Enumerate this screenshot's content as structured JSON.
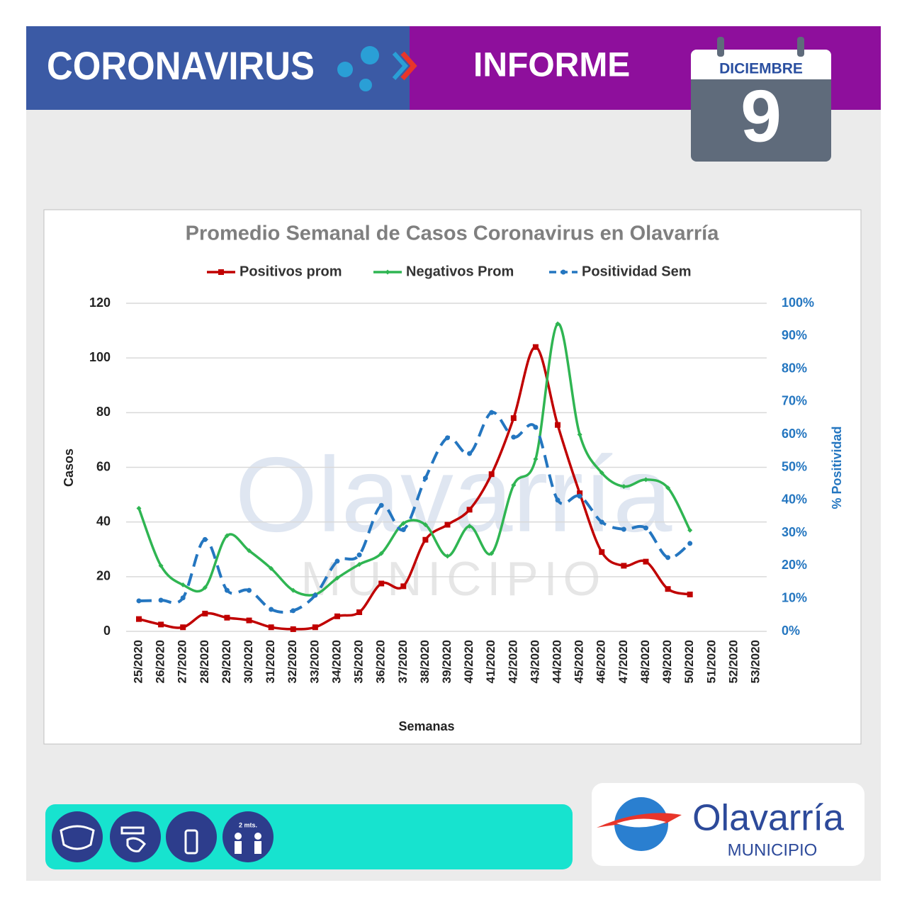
{
  "header": {
    "title": "CORONAVIRUS",
    "subtitle": "INFORME",
    "month": "DICIEMBRE",
    "day": "9"
  },
  "watermark": {
    "text": "Olavarría",
    "sub": "MUNICIPIO"
  },
  "chart_data": {
    "type": "line",
    "title": "Promedio Semanal de Casos Coronavirus en Olavarría",
    "x_label": "Semanas",
    "y_label": "Casos",
    "y2_label": "% Positividad",
    "categories": [
      "25/2020",
      "26/2020",
      "27/2020",
      "28/2020",
      "29/2020",
      "30/2020",
      "31/2020",
      "32/2020",
      "33/2020",
      "34/2020",
      "35/2020",
      "36/2020",
      "37/2020",
      "38/2020",
      "39/2020",
      "40/2020",
      "41/2020",
      "42/2020",
      "43/2020",
      "44/2020",
      "45/2020",
      "46/2020",
      "47/2020",
      "48/2020",
      "49/2020",
      "50/2020",
      "51/2020",
      "52/2020",
      "53/2020"
    ],
    "series": [
      {
        "name": "Positivos prom",
        "color": "#c00000",
        "marker": "square",
        "values": [
          4.5,
          2.5,
          1.5,
          6.5,
          5,
          4,
          1.5,
          0.8,
          1.5,
          5.5,
          7,
          17.5,
          16.5,
          33.5,
          39,
          44.5,
          57.5,
          78,
          104,
          75.5,
          50.5,
          29,
          24,
          25.5,
          15.5,
          13.5,
          null,
          null,
          null
        ]
      },
      {
        "name": "Negativos Prom",
        "color": "#2fb552",
        "marker": "diamond",
        "values": [
          45,
          24,
          17,
          16,
          35,
          29.5,
          23,
          15,
          13.5,
          19.5,
          24.5,
          28.5,
          39.5,
          39,
          27.5,
          38.5,
          28.5,
          53.5,
          63,
          112.5,
          72,
          58,
          53,
          55.5,
          52.5,
          37,
          null,
          null,
          null
        ]
      },
      {
        "name": "Positividad Sem",
        "color": "#2476c0",
        "marker": "circle",
        "dashed": true,
        "axis": "y2",
        "values": [
          9.3,
          9.5,
          10.2,
          28,
          12.5,
          12.5,
          6.7,
          6.3,
          11,
          21.4,
          23.3,
          38.4,
          31,
          46.7,
          59,
          54.2,
          66.7,
          59.2,
          62.2,
          40,
          41.2,
          33.3,
          31.1,
          31.5,
          22.5,
          26.8,
          null,
          null,
          null
        ]
      }
    ],
    "ylim": [
      0,
      120
    ],
    "yticks": [
      0,
      20,
      40,
      60,
      80,
      100,
      120
    ],
    "y2lim": [
      0,
      100
    ],
    "y2ticks": [
      {
        "value": 0,
        "label": "0%"
      },
      {
        "value": 10,
        "label": "10%"
      },
      {
        "value": 20,
        "label": "20%"
      },
      {
        "value": 30,
        "label": "30%"
      },
      {
        "value": 40,
        "label": "40%"
      },
      {
        "value": 50,
        "label": "50%"
      },
      {
        "value": 60,
        "label": "60%"
      },
      {
        "value": 70,
        "label": "70%"
      },
      {
        "value": 80,
        "label": "80%"
      },
      {
        "value": 90,
        "label": "90%"
      },
      {
        "value": 100,
        "label": "100%"
      }
    ],
    "grid": true,
    "legend": "top"
  },
  "footer": {
    "icon_label": "2 mts.",
    "logo": "Olavarría",
    "logo_sub": "MUNICIPIO"
  }
}
